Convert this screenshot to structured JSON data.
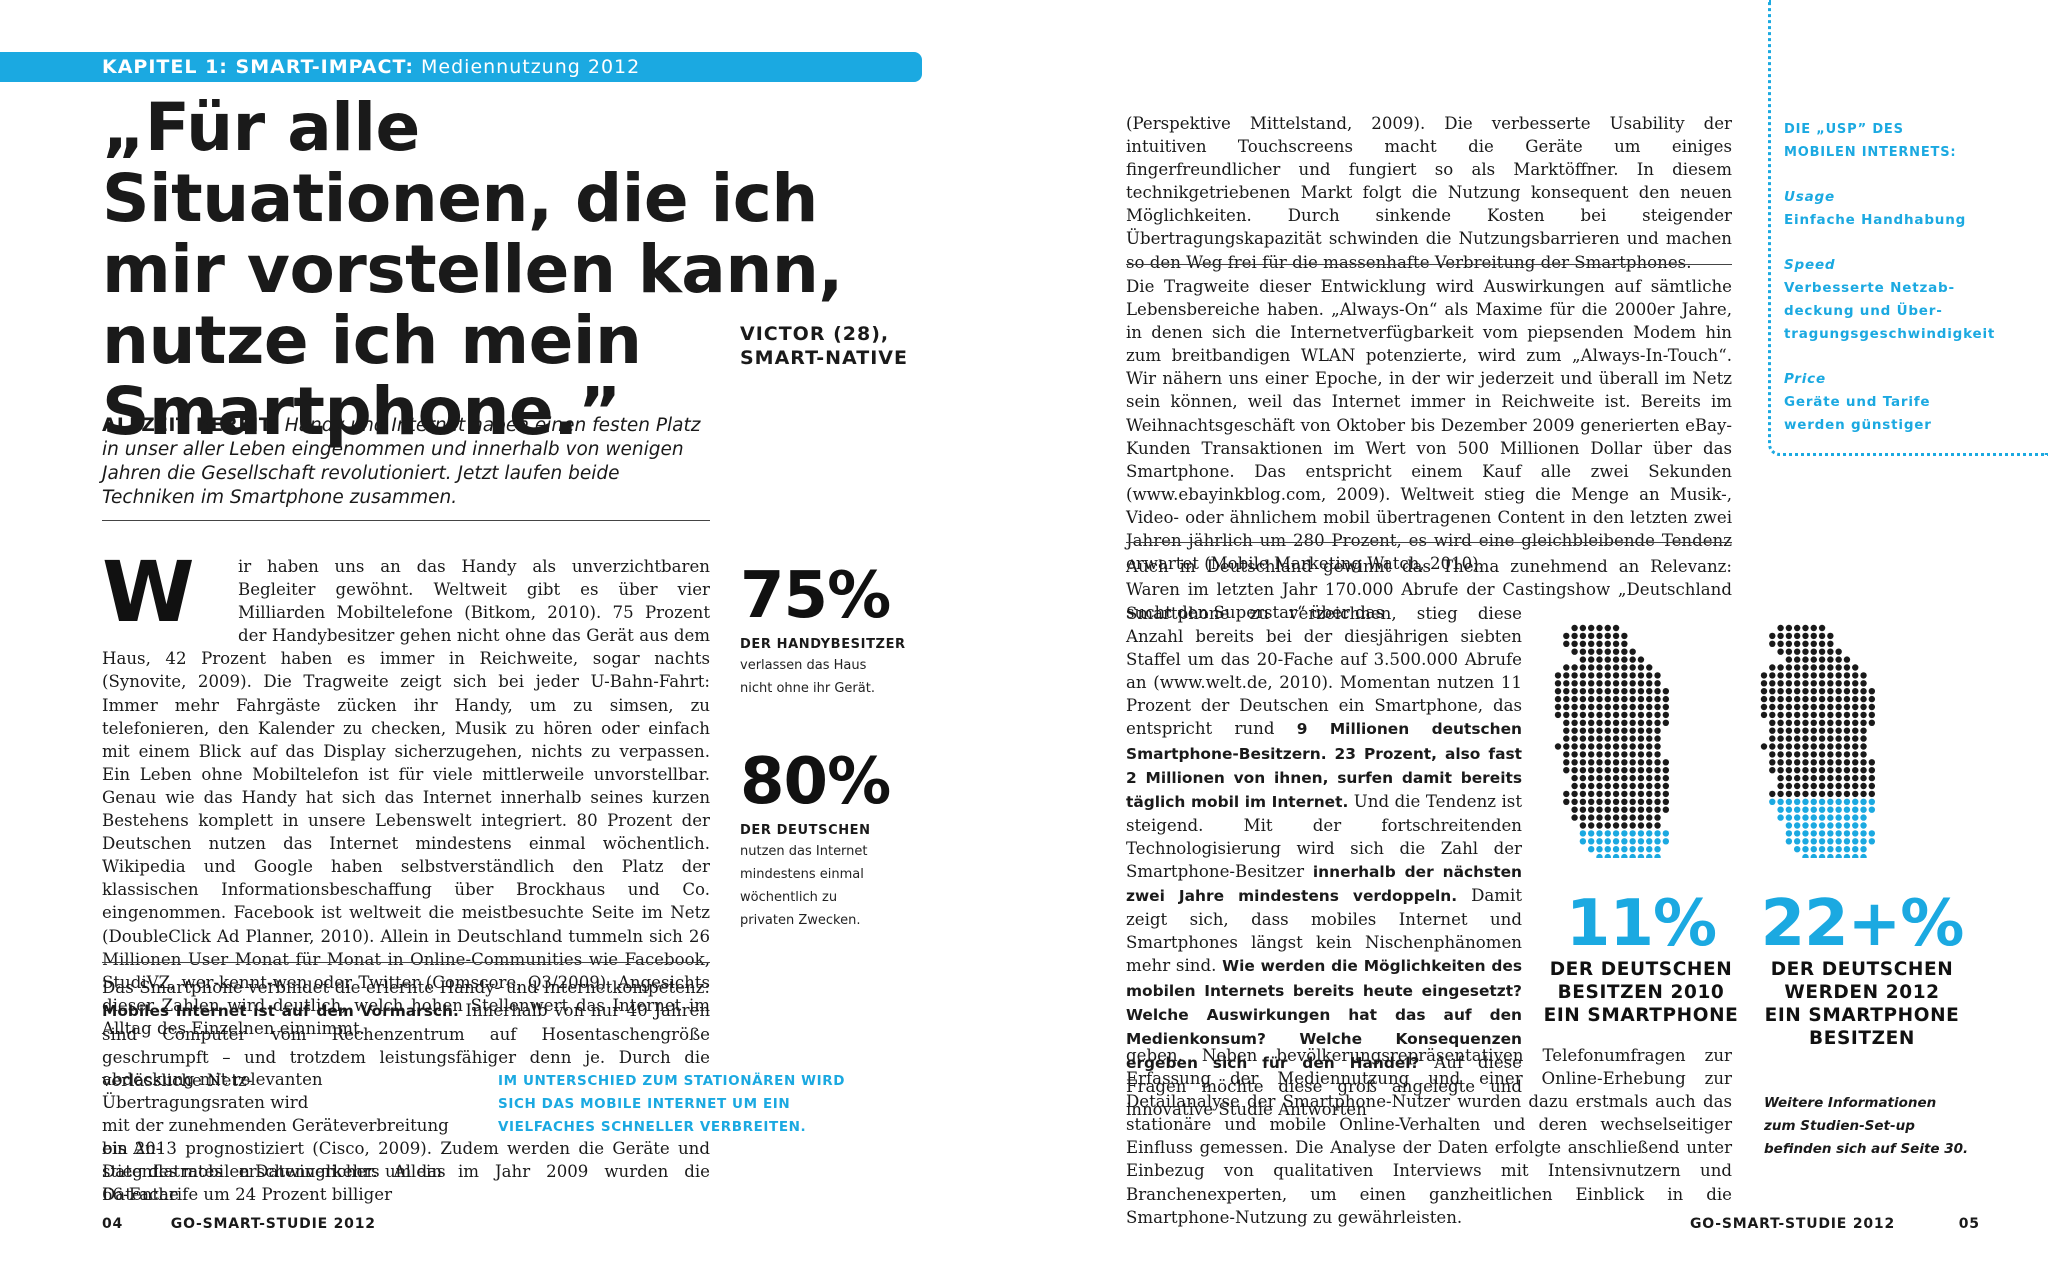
{
  "chapter": {
    "label": "KAPITEL 1: SMART-IMPACT:",
    "topic": "Mediennutzung 2012"
  },
  "quote": {
    "text": "„Für alle Situationen, die ich mir vorstellen kann, nutze ich mein Smartphone.”",
    "speaker_line1": "VICTOR (28),",
    "speaker_line2": "SMART-NATIVE"
  },
  "intro": {
    "lead": "ALLZEIT BEREIT:",
    "text": "Handy und Internet haben einen festen Platz in unser aller Leben eingenommen und innerhalb von wenigen Jahren die Gesellschaft revolutioniert. Jetzt laufen beide Techniken im Smartphone zusammen."
  },
  "left_body": {
    "dropcap": "W",
    "p1": "ir haben uns an das Handy als unverzichtbaren Begleiter gewöhnt. Weltweit gibt es über vier Milliarden Mobiltelefone (Bitkom, 2010). 75 Prozent der Handybesitzer gehen nicht ohne das Gerät aus dem Haus, 42 Prozent haben es immer in Reichweite, sogar nachts (Synovite, 2009). Die Tragweite zeigt sich bei jeder U-Bahn-Fahrt: Immer mehr Fahrgäste zücken ihr Handy, um zu simsen, zu telefonieren, den Kalender zu checken, Musik zu hören oder einfach mit einem Blick auf das Display sicherzugehen, nichts zu verpassen. Ein Leben ohne Mobiltelefon ist für viele mittlerweile unvorstellbar. Genau wie das Handy hat sich das Internet innerhalb seines kurzen Bestehens komplett in unsere Lebenswelt integriert. 80 Prozent der Deutschen nutzen das Internet mindestens einmal wöchentlich. Wikipedia und Google haben selbstverständlich den Platz der klassischen Informationsbeschaffung über Brockhaus und Co. eingenommen. Facebook ist weltweit die meistbesuchte Seite im Netz (DoubleClick Ad Planner, 2010). Allein in Deutschland tummeln sich 26 Millionen User Monat für Monat in Online-Communities wie Facebook, StudiVZ, wer-kennt-wen oder Twitter (Comscore, Q3/2009). Angesichts dieser Zahlen wird deutlich, welch hohen Stellenwert das Internet im Alltag des Einzelnen einnimmt.",
    "p2_start": "Das Smartphone verbindet die erlernte Handy- und Internetkompetenz:",
    "p2_bold": "Mobiles Internet ist auf dem Vormarsch.",
    "p2_rest": "Innerhalb von nur 40 Jahren sind Computer vom Rechenzentrum auf Hosentaschengröße geschrumpft – und trotzdem leistungsfähiger denn je. Durch die verlässliche Netz-",
    "p2_narrow": [
      "abdeckung mit relevanten Übertragungsraten wird",
      "mit der zunehmenden Geräteverbreitung ein An-",
      "stieg des mobilen Datenverkehrs um das 66-Fache"
    ],
    "p2_end": "bis 2013 prognostiziert (Cisco, 2009). Zudem werden die Geräte und Datenflatrates erschwinglicher. Allein im Jahr 2009 wurden die Datentarife um 24 Prozent billiger"
  },
  "stats_left": [
    {
      "value": "75%",
      "caption": "DER HANDYBESITZER",
      "text_lines": [
        "verlassen das Haus",
        "nicht ohne ihr Gerät."
      ]
    },
    {
      "value": "80%",
      "caption": "DER DEUTSCHEN",
      "text_lines": [
        "nutzen das Internet",
        "mindestens einmal",
        "wöchentlich zu",
        "privaten Zwecken."
      ]
    }
  ],
  "pull_quote": "IM UNTERSCHIED ZUM STATIONÄREN WIRD SICH DAS MOBILE INTERNET UM EIN VIELFACHES SCHNELLER VERBREITEN.",
  "right_body": {
    "p1": "(Perspektive Mittelstand, 2009). Die verbesserte Usability der intuitiven Touchscreens macht die Geräte um einiges fingerfreundlicher und fungiert so als Marktöffner. In diesem technikgetriebenen Markt folgt die Nutzung konsequent den neuen Möglichkeiten. Durch sinkende Kosten bei steigender Übertragungskapazität schwinden die Nutzungsbarrieren und machen so den Weg frei für die massenhafte Verbreitung der Smartphones.",
    "p2": "Die Tragweite dieser Entwicklung wird Auswirkungen auf sämtliche Lebensbereiche haben. „Always-On“ als Maxime für die 2000er Jahre, in denen sich die Internetverfügbarkeit vom piepsenden Modem hin zum breitbandigen WLAN potenzierte, wird zum „Always-In-Touch“. Wir nähern uns einer Epoche, in der wir jederzeit und überall im Netz sein können, weil das Internet immer in Reichweite ist. Bereits im Weihnachtsgeschäft von Oktober bis Dezember 2009 generierten eBay-Kunden Transaktionen im Wert von 500 Millionen Dollar über das Smartphone. Das entspricht einem Kauf alle zwei Sekunden (www.ebayinkblog.com, 2009). Weltweit stieg die Menge an Musik-, Video- oder ähnlichem mobil übertragenen Content in den letzten zwei Jahren jährlich um 280 Prozent, es wird eine gleichbleibende Tendenz erwartet (Mobile Marketing Watch, 2010).",
    "p3_full": "Auch in Deutschland gewinnt das Thema zunehmend an Relevanz: Waren im letzten Jahr 170.000 Abrufe der Castingshow „Deutschland sucht den Superstar“ über das",
    "p3_narrow_1": "Smartphone zu verzeichnen, stieg diese Anzahl bereits bei der diesjährigen siebten Staffel um das 20-Fache auf 3.500.000 Abrufe an (www.welt.de, 2010). Momentan nutzen 11 Prozent der Deutschen ein Smartphone, das entspricht rund",
    "p3_bold_1": "9 Millionen deutschen Smartphone-Besitzern. 23 Prozent, also fast 2 Millionen von ihnen, surfen damit bereits täglich mobil im Internet.",
    "p3_narrow_2": "Und die Tendenz ist steigend. Mit der fortschreitenden Technologisierung wird sich die Zahl der Smartphone-Besitzer",
    "p3_bold_2": "innerhalb der nächsten zwei Jahre mindestens verdoppeln.",
    "p3_narrow_3": "Damit zeigt sich, dass mobiles Internet und Smartphones längst kein Nischenphänomen mehr sind.",
    "p3_bold_3": "Wie werden die Möglichkeiten des mobilen Internets bereits heute eingesetzt? Welche Auswirkungen hat das auf den Medienkonsum? Welche Konsequenzen ergeben sich für den Handel?",
    "p3_narrow_4": "Auf diese Fragen möchte diese groß angelegte und innovative Studie Antworten",
    "p3_end": "geben. Neben bevölkerungsrepräsentativen Telefonumfragen zur Erfassung der Mediennutzung und einer Online-Erhebung zur Detailanalyse der Smartphone-Nutzer wurden dazu erstmals auch das stationäre und mobile Online-Verhalten und deren wechselseitiger Einfluss gemessen. Die Analyse der Daten erfolgte anschließend unter Einbezug von qualitativen Interviews mit Intensivnutzern und Branchenexperten, um einen ganzheitlichen Einblick in die Smartphone-Nutzung zu gewährleisten."
  },
  "sidebar": {
    "title_line1": "DIE „USP” DES",
    "title_line2": "MOBILEN INTERNETS:",
    "items": [
      {
        "heading": "Usage",
        "lines": [
          "Einfache Handhabung"
        ]
      },
      {
        "heading": "Speed",
        "lines": [
          "Verbesserte Netzab-",
          "deckung und Über-",
          "tragungsgeschwindigkeit"
        ]
      },
      {
        "heading": "Price",
        "lines": [
          "Geräte und Tarife",
          "werden günstiger"
        ]
      }
    ]
  },
  "maps": [
    {
      "value": "11%",
      "fill_fraction": 0.11,
      "caption_lines": [
        "DER DEUTSCHEN",
        "BESITZEN 2010",
        "EIN SMARTPHONE"
      ]
    },
    {
      "value": "22+%",
      "fill_fraction": 0.22,
      "caption_lines": [
        "DER DEUTSCHEN",
        "WERDEN 2012",
        "EIN SMARTPHONE",
        "BESITZEN"
      ]
    }
  ],
  "more_info": [
    "Weitere Informationen",
    "zum Studien-Set-up",
    "befinden sich auf Seite 30."
  ],
  "footer": {
    "left_page": "04",
    "left_title": "GO-SMART-STUDIE 2012",
    "right_title": "GO-SMART-STUDIE 2012",
    "right_page": "05"
  },
  "colors": {
    "accent": "#1ba9e1",
    "text": "#1a1a1a"
  }
}
